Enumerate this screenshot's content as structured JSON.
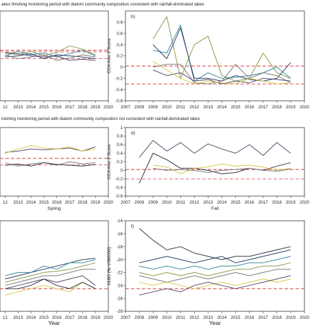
{
  "figure": {
    "header_top": "akes finishing monitoring period with diatom community composition consistent with rainfall-dominated lakes",
    "header_middle": "inishing monitoring period with diatom community composition not consistent with rainfall-dominated lakes",
    "colors": {
      "ref_line": "#d23c3c",
      "olive": "#8a9a4a",
      "teal": "#3a8a9a",
      "navy": "#2c3e6b",
      "gray": "#7a7a7a",
      "purple": "#5a4a6a",
      "yellow": "#d8c84a",
      "dark": "#333340"
    }
  },
  "chart_data": [
    {
      "id": "a",
      "type": "line",
      "panel_label": "",
      "x": [
        2012,
        2013,
        2014,
        2015,
        2016,
        2017,
        2018,
        2019
      ],
      "xtick_labels": [
        "12",
        "2013",
        "2014",
        "2015",
        "2016",
        "2017",
        "2018",
        "2019",
        "2020"
      ],
      "ylim": [
        -0.6,
        1.0
      ],
      "ref_lines": [
        0.3,
        0.15,
        0.27
      ],
      "series": [
        {
          "color": "olive",
          "values": [
            0.25,
            0.22,
            0.28,
            0.2,
            0.26,
            0.38,
            0.32,
            0.22
          ]
        },
        {
          "color": "teal",
          "values": [
            0.2,
            0.28,
            0.22,
            0.25,
            0.18,
            0.24,
            0.3,
            0.2
          ]
        },
        {
          "color": "navy",
          "values": [
            0.18,
            0.2,
            0.24,
            0.15,
            0.22,
            0.2,
            0.18,
            0.15
          ]
        },
        {
          "color": "gray",
          "values": [
            0.22,
            0.15,
            0.18,
            0.22,
            0.12,
            0.16,
            0.22,
            0.18
          ]
        },
        {
          "color": "purple",
          "values": [
            0.26,
            0.24,
            0.2,
            0.18,
            0.2,
            0.12,
            0.14,
            0.12
          ]
        }
      ]
    },
    {
      "id": "b",
      "type": "line",
      "panel_label": "b)",
      "ylabel": "CCA Axis 2 Score",
      "x": [
        2007,
        2008,
        2009,
        2010,
        2011,
        2012,
        2013,
        2014,
        2015,
        2016,
        2017,
        2018,
        2019,
        2020
      ],
      "xtick_labels": [
        "2007",
        "2008",
        "2009",
        "2010",
        "2011",
        "2012",
        "2013",
        "2014",
        "2015",
        "2016",
        "2017",
        "2018",
        "2019",
        "2020"
      ],
      "yticks": [
        "0.8",
        "0.6",
        "0.4",
        "0.2",
        "0",
        "-0.2",
        "-0.4",
        "-0.6"
      ],
      "ylim": [
        -0.6,
        1.0
      ],
      "ref_lines": [
        0.02,
        -0.3
      ],
      "series": [
        {
          "color": "olive",
          "x": [
            2009,
            2010,
            2011,
            2012,
            2013,
            2014,
            2015,
            2016,
            2017,
            2018,
            2019
          ],
          "values": [
            0.5,
            0.9,
            -0.2,
            0.4,
            0.55,
            -0.15,
            -0.25,
            -0.2,
            0.25,
            -0.1,
            -0.2
          ]
        },
        {
          "color": "teal",
          "x": [
            2009,
            2010,
            2011,
            2012,
            2013,
            2014,
            2015,
            2016,
            2017,
            2018,
            2019
          ],
          "values": [
            0.3,
            0.25,
            0.75,
            -0.25,
            -0.1,
            -0.2,
            -0.18,
            -0.15,
            -0.1,
            0.0,
            -0.2
          ]
        },
        {
          "color": "navy",
          "x": [
            2009,
            2010,
            2011,
            2012,
            2013,
            2014,
            2015,
            2016,
            2017,
            2018,
            2019
          ],
          "values": [
            0.4,
            0.15,
            0.7,
            -0.2,
            -0.2,
            -0.25,
            -0.15,
            -0.22,
            -0.25,
            -0.2,
            0.08
          ]
        },
        {
          "color": "gray",
          "x": [
            2009,
            2010,
            2011,
            2012,
            2013,
            2014,
            2015,
            2016,
            2017,
            2018,
            2019
          ],
          "values": [
            0.0,
            0.05,
            0.05,
            -0.28,
            -0.3,
            -0.25,
            0.05,
            -0.2,
            -0.1,
            -0.15,
            -0.28
          ]
        },
        {
          "color": "purple",
          "x": [
            2009,
            2010,
            2011,
            2012,
            2013,
            2014,
            2015,
            2016,
            2017,
            2018,
            2019
          ],
          "values": [
            -0.05,
            -0.15,
            -0.1,
            -0.25,
            -0.22,
            -0.3,
            -0.25,
            -0.28,
            -0.2,
            -0.22,
            -0.25
          ]
        },
        {
          "color": "yellow",
          "x": [
            2009,
            2010,
            2011,
            2012,
            2013,
            2014,
            2015,
            2016,
            2017,
            2018,
            2019
          ],
          "values": [
            0.1,
            -0.05,
            -0.2,
            -0.3,
            -0.25,
            -0.28,
            -0.3,
            -0.2,
            -0.25,
            -0.3,
            -0.28
          ]
        }
      ]
    },
    {
      "id": "c",
      "type": "line",
      "panel_label": "",
      "subtitle": "Spring",
      "x": [
        2012,
        2013,
        2014,
        2015,
        2016,
        2017,
        2018,
        2019
      ],
      "xtick_labels": [
        "12",
        "2013",
        "2014",
        "2015",
        "2016",
        "2017",
        "2018",
        "2019",
        "2020"
      ],
      "ylim": [
        -0.6,
        1.0
      ],
      "ref_lines": [
        0.28,
        0.13
      ],
      "series": [
        {
          "color": "purple",
          "values": [
            0.42,
            0.45,
            0.5,
            0.48,
            0.5,
            0.52,
            0.45,
            0.55
          ]
        },
        {
          "color": "yellow",
          "values": [
            0.4,
            0.5,
            0.58,
            0.52,
            0.5,
            0.55,
            0.45,
            0.5
          ]
        },
        {
          "color": "gray",
          "values": [
            0.18,
            0.1,
            0.15,
            0.18,
            0.12,
            0.2,
            0.15,
            0.18
          ]
        },
        {
          "color": "dark",
          "values": [
            0.12,
            0.15,
            0.1,
            0.18,
            0.14,
            0.12,
            0.1,
            0.14
          ]
        }
      ]
    },
    {
      "id": "d",
      "type": "line",
      "panel_label": "d)",
      "ylabel": "CCA Axis 2 Score",
      "xlabel": "Fall",
      "x": [
        2007,
        2008,
        2009,
        2010,
        2011,
        2012,
        2013,
        2014,
        2015,
        2016,
        2017,
        2018,
        2019,
        2020
      ],
      "xtick_labels": [
        "2007",
        "2008",
        "2009",
        "2010",
        "2011",
        "2012",
        "2013",
        "2014",
        "2015",
        "2016",
        "2017",
        "2018",
        "2019",
        "2020"
      ],
      "yticks": [
        "1",
        "0.8",
        "0.6",
        "0.4",
        "0.2",
        "0",
        "-0.2",
        "-0.4",
        "-0.6"
      ],
      "ylim": [
        -0.6,
        1.0
      ],
      "ref_lines": [
        0.02,
        -0.2
      ],
      "series": [
        {
          "color": "purple",
          "x": [
            2008,
            2009,
            2010,
            2011,
            2012,
            2013,
            2014,
            2015,
            2016,
            2017,
            2018,
            2019
          ],
          "values": [
            0.3,
            0.7,
            0.45,
            0.65,
            0.4,
            0.62,
            0.5,
            0.4,
            0.6,
            0.35,
            0.65,
            0.4
          ]
        },
        {
          "color": "dark",
          "x": [
            2008,
            2009,
            2010,
            2011,
            2012,
            2013,
            2014,
            2015,
            2016,
            2017,
            2018,
            2019
          ],
          "values": [
            -0.3,
            0.4,
            0.25,
            0.05,
            0.05,
            0.0,
            -0.08,
            -0.05,
            0.05,
            0.0,
            0.1,
            0.18
          ]
        },
        {
          "color": "yellow",
          "x": [
            2009,
            2010,
            2011,
            2012,
            2013,
            2014,
            2015,
            2016,
            2017,
            2018,
            2019
          ],
          "values": [
            0.12,
            0.08,
            -0.08,
            0.05,
            0.08,
            0.15,
            0.1,
            0.12,
            0.08,
            0.0,
            0.05
          ]
        },
        {
          "color": "gray",
          "x": [
            2009,
            2010,
            2011,
            2012,
            2013,
            2014,
            2015,
            2016,
            2017,
            2018,
            2019
          ],
          "values": [
            0.05,
            0.0,
            0.02,
            0.0,
            -0.05,
            0.0,
            0.02,
            0.05,
            0.0,
            -0.02,
            0.03
          ]
        }
      ]
    },
    {
      "id": "e",
      "type": "line",
      "panel_label": "",
      "xlabel": "Year",
      "x": [
        2012,
        2013,
        2014,
        2015,
        2016,
        2017,
        2018,
        2019
      ],
      "xtick_labels": [
        "12",
        "2013",
        "2014",
        "2015",
        "2016",
        "2017",
        "2018",
        "2019",
        "2020"
      ],
      "ylim": [
        -28,
        -14
      ],
      "ref_lines": [
        -24.5
      ],
      "series": [
        {
          "color": "navy",
          "values": [
            -23.0,
            -22.5,
            -22.0,
            -21.5,
            -21.0,
            -20.5,
            -20.0,
            -19.8
          ]
        },
        {
          "color": "teal",
          "values": [
            -22.5,
            -22.0,
            -22.0,
            -21.0,
            -21.5,
            -20.5,
            -20.5,
            -20.0
          ]
        },
        {
          "color": "olive",
          "values": [
            -23.5,
            -23.0,
            -22.5,
            -22.0,
            -21.8,
            -21.5,
            -21.0,
            -20.5
          ]
        },
        {
          "color": "gray",
          "values": [
            -24.0,
            -23.5,
            -23.0,
            -22.5,
            -22.5,
            -22.0,
            -21.5,
            -21.5
          ]
        },
        {
          "color": "purple",
          "values": [
            -24.5,
            -24.0,
            -23.5,
            -23.0,
            -23.5,
            -23.0,
            -22.5,
            -24.0
          ]
        },
        {
          "color": "yellow",
          "values": [
            -25.5,
            -25.0,
            -24.5,
            -24.0,
            -24.5,
            -25.0,
            -23.5,
            -24.5
          ]
        },
        {
          "color": "dark",
          "values": [
            -24.5,
            -24.5,
            -24.0,
            -23.0,
            -24.0,
            -24.5,
            -23.5,
            -24.5
          ]
        }
      ]
    },
    {
      "id": "f",
      "type": "line",
      "panel_label": "f)",
      "ylabel": "δ18O (‰ VSMOW)",
      "xlabel": "Year",
      "x": [
        2007,
        2008,
        2009,
        2010,
        2011,
        2012,
        2013,
        2014,
        2015,
        2016,
        2017,
        2018,
        2019,
        2020
      ],
      "xtick_labels": [
        "2007",
        "2008",
        "2009",
        "2010",
        "2011",
        "2012",
        "2013",
        "2014",
        "2015",
        "2016",
        "2017",
        "2018",
        "2019",
        "2020"
      ],
      "yticks": [
        "-14",
        "-16",
        "-18",
        "-20",
        "-22",
        "-24",
        "-26",
        "-28"
      ],
      "ylim": [
        -28,
        -14
      ],
      "ref_lines": [
        -24.5
      ],
      "series": [
        {
          "color": "dark",
          "x": [
            2008,
            2009,
            2010,
            2011,
            2012,
            2013,
            2014,
            2015,
            2016,
            2017,
            2018,
            2019
          ],
          "values": [
            -15.2,
            -17.0,
            -18.5,
            -18.0,
            -19.0,
            -19.5,
            -20.0,
            -19.5,
            -19.5,
            -19.0,
            -18.5,
            -18.0
          ]
        },
        {
          "color": "navy",
          "x": [
            2008,
            2009,
            2010,
            2011,
            2012,
            2013,
            2014,
            2015,
            2016,
            2017,
            2018,
            2019
          ],
          "values": [
            -20.5,
            -20.0,
            -19.5,
            -20.0,
            -20.5,
            -20.0,
            -19.5,
            -20.5,
            -20.0,
            -19.5,
            -19.0,
            -18.5
          ]
        },
        {
          "color": "teal",
          "x": [
            2008,
            2009,
            2010,
            2011,
            2012,
            2013,
            2014,
            2015,
            2016,
            2017,
            2018,
            2019
          ],
          "values": [
            -21.0,
            -21.5,
            -21.0,
            -21.5,
            -21.0,
            -21.5,
            -21.0,
            -21.0,
            -20.5,
            -20.5,
            -20.0,
            -19.5
          ]
        },
        {
          "color": "olive",
          "x": [
            2008,
            2009,
            2010,
            2011,
            2012,
            2013,
            2014,
            2015,
            2016,
            2017,
            2018,
            2019
          ],
          "values": [
            -22.0,
            -22.5,
            -22.0,
            -22.5,
            -22.0,
            -22.5,
            -22.0,
            -21.5,
            -21.5,
            -21.0,
            -21.0,
            -20.5
          ]
        },
        {
          "color": "gray",
          "x": [
            2008,
            2009,
            2010,
            2011,
            2012,
            2013,
            2014,
            2015,
            2016,
            2017,
            2018,
            2019
          ],
          "values": [
            -22.5,
            -23.0,
            -23.5,
            -23.0,
            -22.5,
            -23.0,
            -22.5,
            -22.0,
            -22.5,
            -22.0,
            -21.5,
            -21.5
          ]
        },
        {
          "color": "yellow",
          "x": [
            2008,
            2009,
            2010,
            2011,
            2012,
            2013,
            2014,
            2015,
            2016,
            2017,
            2018,
            2019
          ],
          "values": [
            -23.5,
            -24.0,
            -23.5,
            -24.0,
            -24.5,
            -24.0,
            -23.5,
            -24.0,
            -23.5,
            -23.0,
            -23.5,
            -23.0
          ]
        },
        {
          "color": "purple",
          "x": [
            2008,
            2009,
            2010,
            2011,
            2012,
            2013,
            2014,
            2015,
            2016,
            2017,
            2018,
            2019
          ],
          "values": [
            -25.5,
            -25.0,
            -24.5,
            -25.0,
            -24.0,
            -23.5,
            -24.0,
            -24.5,
            -24.0,
            -23.5,
            -23.0,
            -22.5
          ]
        }
      ]
    }
  ]
}
